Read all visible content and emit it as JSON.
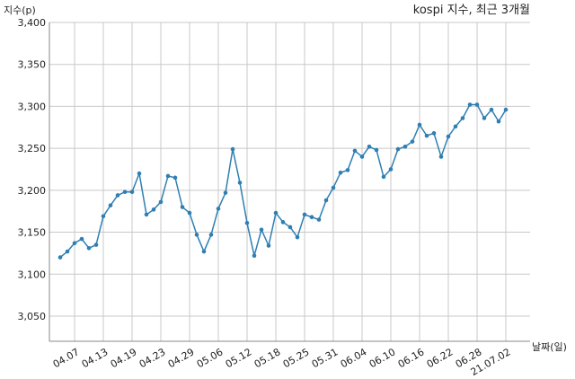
{
  "chart_data": {
    "type": "line",
    "title": "kospi 지수, 최근 3개월",
    "y_label": "지수(p)",
    "x_label": "날짜(일)",
    "categories": [
      null,
      null,
      "04.07",
      null,
      null,
      null,
      "04.13",
      null,
      null,
      null,
      "04.19",
      null,
      null,
      null,
      "04.23",
      null,
      null,
      null,
      "04.29",
      null,
      null,
      null,
      "05.06",
      null,
      null,
      null,
      "05.12",
      null,
      null,
      null,
      "05.18",
      null,
      null,
      null,
      "05.25",
      null,
      null,
      null,
      "05.31",
      null,
      null,
      null,
      "06.04",
      null,
      null,
      null,
      "06.10",
      null,
      null,
      null,
      "06.16",
      null,
      null,
      null,
      "06.22",
      null,
      null,
      null,
      "06.28",
      null,
      null,
      null,
      "21.07.02"
    ],
    "series": [
      {
        "name": "kospi",
        "color": "#2f7fb3",
        "values": [
          3120,
          3127,
          3137,
          3142,
          3131,
          3135,
          3169,
          3182,
          3194,
          3198,
          3198,
          3220,
          3171,
          3177,
          3186,
          3217,
          3215,
          3180,
          3173,
          3147,
          3127,
          3147,
          3178,
          3197,
          3249,
          3209,
          3161,
          3122,
          3153,
          3134,
          3173,
          3162,
          3156,
          3144,
          3171,
          3168,
          3165,
          3188,
          3203,
          3221,
          3224,
          3247,
          3240,
          3252,
          3248,
          3216,
          3225,
          3249,
          3252,
          3258,
          3278,
          3265,
          3268,
          3240,
          3264,
          3276,
          3286,
          3302,
          3302,
          3286,
          3296,
          3282,
          3296
        ]
      }
    ],
    "ylim": [
      3020,
      3400
    ],
    "yticks": [
      {
        "value": 3050,
        "label": "3,050"
      },
      {
        "value": 3100,
        "label": "3,100"
      },
      {
        "value": 3150,
        "label": "3,150"
      },
      {
        "value": 3200,
        "label": "3,200"
      },
      {
        "value": 3250,
        "label": "3,250"
      },
      {
        "value": 3300,
        "label": "3,300"
      },
      {
        "value": 3350,
        "label": "3,350"
      },
      {
        "value": 3400,
        "label": "3,400"
      }
    ],
    "grid": true
  }
}
